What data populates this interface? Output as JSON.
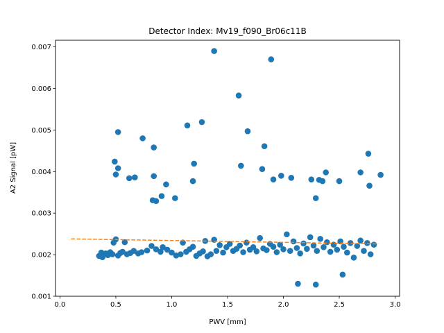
{
  "chart_data": {
    "type": "scatter",
    "title": "Detector Index: Mv19_f090_Br06c11B",
    "xlabel": "PWV [mm]",
    "ylabel": "A2 Signal [pW]",
    "xlim": [
      -0.04,
      3.04
    ],
    "ylim": [
      0.001,
      0.00716
    ],
    "x_ticks": [
      0.0,
      0.5,
      1.0,
      1.5,
      2.0,
      2.5,
      3.0
    ],
    "x_tick_labels": [
      "0.0",
      "0.5",
      "1.0",
      "1.5",
      "2.0",
      "2.5",
      "3.0"
    ],
    "y_ticks": [
      0.001,
      0.002,
      0.003,
      0.004,
      0.005,
      0.006,
      0.007
    ],
    "y_tick_labels": [
      "0.001",
      "0.002",
      "0.003",
      "0.004",
      "0.005",
      "0.006",
      "0.007"
    ],
    "series": [
      {
        "name": "data",
        "kind": "scatter",
        "color": "#1f77b4",
        "points": [
          [
            1.38,
            0.0069
          ],
          [
            1.89,
            0.0067
          ],
          [
            1.6,
            0.00583
          ],
          [
            1.27,
            0.00519
          ],
          [
            1.14,
            0.00511
          ],
          [
            0.52,
            0.00495
          ],
          [
            1.68,
            0.00497
          ],
          [
            0.74,
            0.0048
          ],
          [
            0.84,
            0.00458
          ],
          [
            1.83,
            0.00461
          ],
          [
            0.49,
            0.00424
          ],
          [
            1.2,
            0.00419
          ],
          [
            1.62,
            0.00414
          ],
          [
            2.76,
            0.00443
          ],
          [
            0.52,
            0.00408
          ],
          [
            1.81,
            0.00406
          ],
          [
            0.5,
            0.00393
          ],
          [
            0.62,
            0.00384
          ],
          [
            0.67,
            0.00386
          ],
          [
            0.84,
            0.00389
          ],
          [
            0.95,
            0.00369
          ],
          [
            1.19,
            0.00377
          ],
          [
            1.91,
            0.00381
          ],
          [
            1.98,
            0.0039
          ],
          [
            2.07,
            0.00385
          ],
          [
            2.25,
            0.00381
          ],
          [
            2.32,
            0.0038
          ],
          [
            2.35,
            0.00377
          ],
          [
            2.38,
            0.00398
          ],
          [
            2.5,
            0.00377
          ],
          [
            2.69,
            0.00398
          ],
          [
            2.77,
            0.00366
          ],
          [
            2.87,
            0.00392
          ],
          [
            0.83,
            0.00331
          ],
          [
            0.86,
            0.00329
          ],
          [
            0.91,
            0.00341
          ],
          [
            1.03,
            0.00336
          ],
          [
            2.29,
            0.00336
          ],
          [
            2.13,
            0.0013
          ],
          [
            2.29,
            0.00128
          ],
          [
            2.53,
            0.00152
          ],
          [
            0.35,
            0.00197
          ],
          [
            0.37,
            0.00205
          ],
          [
            0.38,
            0.00194
          ],
          [
            0.4,
            0.002
          ],
          [
            0.41,
            0.00203
          ],
          [
            0.43,
            0.00199
          ],
          [
            0.45,
            0.00206
          ],
          [
            0.47,
            0.00201
          ],
          [
            0.48,
            0.00229
          ],
          [
            0.5,
            0.00237
          ],
          [
            0.52,
            0.00198
          ],
          [
            0.54,
            0.00204
          ],
          [
            0.56,
            0.00207
          ],
          [
            0.58,
            0.0023
          ],
          [
            0.6,
            0.00201
          ],
          [
            0.63,
            0.00204
          ],
          [
            0.66,
            0.00209
          ],
          [
            0.7,
            0.00203
          ],
          [
            0.73,
            0.00206
          ],
          [
            0.78,
            0.0021
          ],
          [
            0.82,
            0.00221
          ],
          [
            0.86,
            0.00213
          ],
          [
            0.9,
            0.00207
          ],
          [
            0.92,
            0.00218
          ],
          [
            0.96,
            0.00212
          ],
          [
            1.0,
            0.00205
          ],
          [
            1.04,
            0.00198
          ],
          [
            1.08,
            0.00201
          ],
          [
            1.1,
            0.00229
          ],
          [
            1.13,
            0.00207
          ],
          [
            1.16,
            0.00213
          ],
          [
            1.19,
            0.00219
          ],
          [
            1.22,
            0.00197
          ],
          [
            1.25,
            0.00203
          ],
          [
            1.28,
            0.00208
          ],
          [
            1.3,
            0.00233
          ],
          [
            1.32,
            0.00196
          ],
          [
            1.35,
            0.00201
          ],
          [
            1.38,
            0.00236
          ],
          [
            1.4,
            0.00209
          ],
          [
            1.43,
            0.00223
          ],
          [
            1.46,
            0.00205
          ],
          [
            1.49,
            0.00218
          ],
          [
            1.52,
            0.00226
          ],
          [
            1.55,
            0.00209
          ],
          [
            1.58,
            0.00214
          ],
          [
            1.61,
            0.00222
          ],
          [
            1.64,
            0.00206
          ],
          [
            1.67,
            0.00229
          ],
          [
            1.7,
            0.00212
          ],
          [
            1.73,
            0.00218
          ],
          [
            1.76,
            0.00208
          ],
          [
            1.79,
            0.0024
          ],
          [
            1.82,
            0.00215
          ],
          [
            1.85,
            0.00211
          ],
          [
            1.88,
            0.00226
          ],
          [
            1.91,
            0.00219
          ],
          [
            1.94,
            0.00206
          ],
          [
            1.97,
            0.00224
          ],
          [
            2.0,
            0.00213
          ],
          [
            2.03,
            0.00249
          ],
          [
            2.06,
            0.00209
          ],
          [
            2.09,
            0.00232
          ],
          [
            2.12,
            0.00216
          ],
          [
            2.15,
            0.00203
          ],
          [
            2.18,
            0.00227
          ],
          [
            2.21,
            0.00214
          ],
          [
            2.24,
            0.00242
          ],
          [
            2.27,
            0.00222
          ],
          [
            2.3,
            0.00209
          ],
          [
            2.33,
            0.00238
          ],
          [
            2.36,
            0.00218
          ],
          [
            2.39,
            0.0023
          ],
          [
            2.42,
            0.00207
          ],
          [
            2.45,
            0.00224
          ],
          [
            2.48,
            0.00212
          ],
          [
            2.51,
            0.00232
          ],
          [
            2.54,
            0.00219
          ],
          [
            2.57,
            0.00205
          ],
          [
            2.6,
            0.00228
          ],
          [
            2.63,
            0.00193
          ],
          [
            2.66,
            0.00221
          ],
          [
            2.69,
            0.00234
          ],
          [
            2.72,
            0.00209
          ],
          [
            2.75,
            0.00228
          ],
          [
            2.78,
            0.00201
          ],
          [
            2.81,
            0.00224
          ]
        ]
      },
      {
        "name": "fit",
        "kind": "line",
        "style": "dashed",
        "color": "#ff7f0e",
        "x": [
          0.1,
          2.85
        ],
        "y": [
          0.00238,
          0.00226
        ]
      }
    ]
  }
}
